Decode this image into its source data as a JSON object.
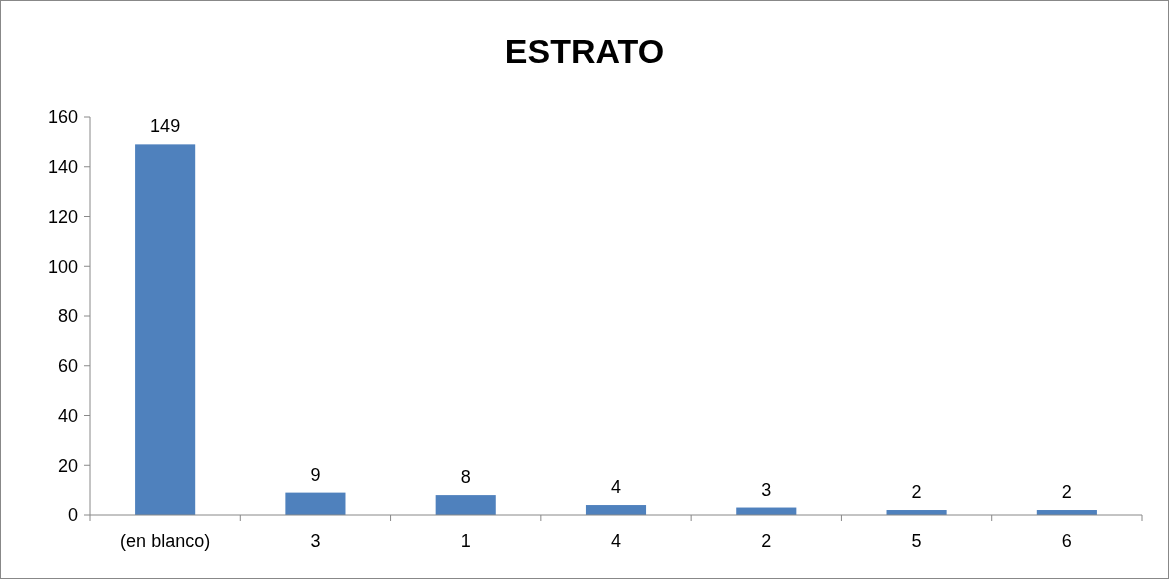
{
  "chart_data": {
    "type": "bar",
    "title": "ESTRATO",
    "categories": [
      "(en blanco)",
      "3",
      "1",
      "4",
      "2",
      "5",
      "6"
    ],
    "values": [
      149,
      9,
      8,
      4,
      3,
      2,
      2
    ],
    "color": "#4f81bd",
    "ylim": [
      0,
      160
    ],
    "yticks": [
      0,
      20,
      40,
      60,
      80,
      100,
      120,
      140,
      160
    ],
    "grid": false,
    "data_labels": true
  }
}
